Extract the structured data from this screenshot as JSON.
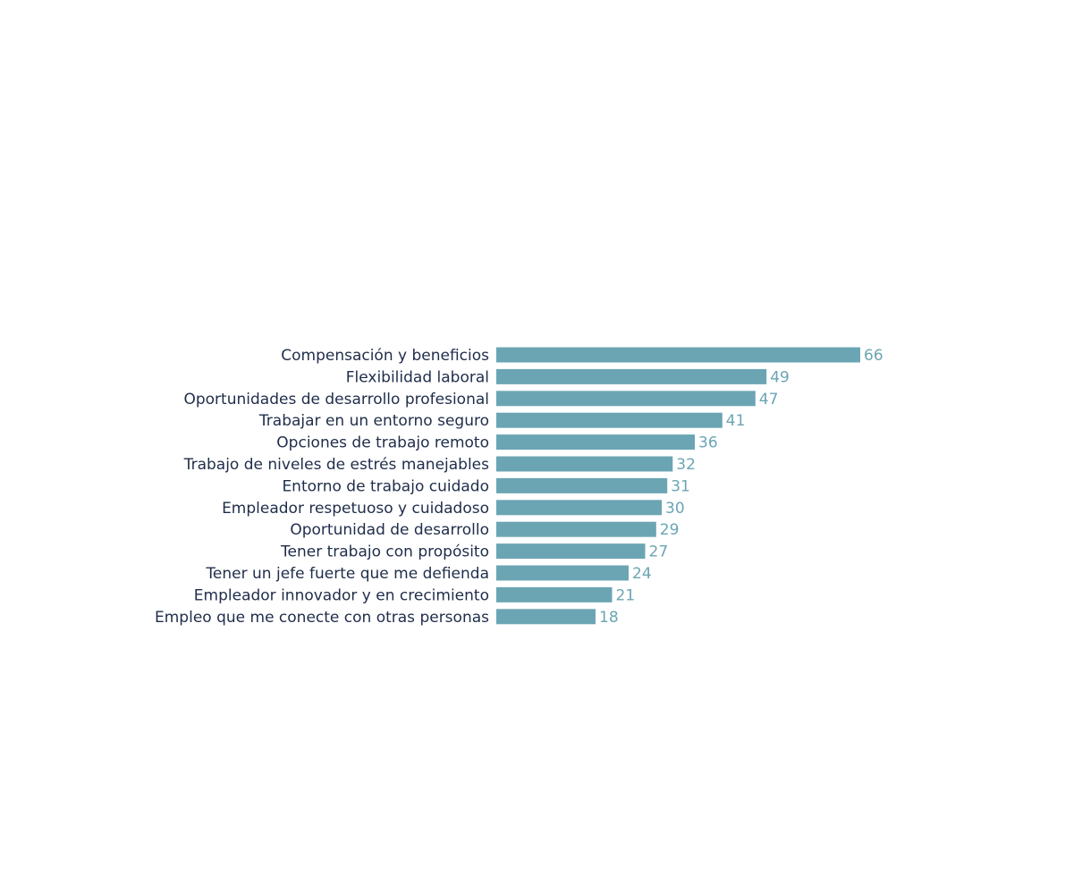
{
  "chart_data": {
    "type": "bar",
    "orientation": "horizontal",
    "categories": [
      "Compensación y beneficios",
      "Flexibilidad laboral",
      "Oportunidades de desarrollo profesional",
      "Trabajar en un entorno seguro",
      "Opciones de trabajo remoto",
      "Trabajo de niveles de estrés manejables",
      "Entorno de trabajo cuidado",
      "Empleador respetuoso y cuidadoso",
      "Oportunidad de desarrollo",
      "Tener trabajo con propósito",
      "Tener un jefe fuerte que me defienda",
      "Empleador innovador y en crecimiento",
      "Empleo que me conecte con otras personas"
    ],
    "values": [
      66,
      49,
      47,
      41,
      36,
      32,
      31,
      30,
      29,
      27,
      24,
      21,
      18
    ],
    "data_labels": [
      "66",
      "49",
      "47",
      "41",
      "36",
      "32",
      "31",
      "30",
      "29",
      "27",
      "24",
      "21",
      "18"
    ],
    "title": "",
    "xlabel": "",
    "ylabel": "",
    "xlim": [
      0,
      66
    ],
    "grid": false,
    "legend": "none",
    "colors": {
      "bar": "#6ba5b4",
      "value_label": "#6ba5b4",
      "category_label": "#1f2d4a",
      "background": "#ffffff"
    }
  }
}
